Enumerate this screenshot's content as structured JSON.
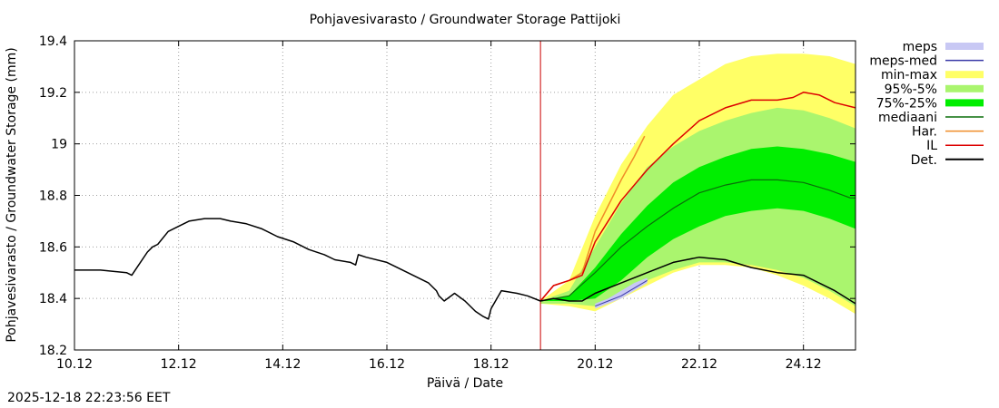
{
  "chart_data": {
    "type": "area",
    "title": "Pohjavesivarasto / Groundwater Storage   Pattijoki",
    "xlabel": "Päivä / Date",
    "ylabel": "Pohjavesivarasto / Groundwater Storage (mm)",
    "xlim": [
      0,
      15
    ],
    "ylim": [
      18.2,
      19.4
    ],
    "grid": true,
    "x_unit": "days since 10.12",
    "x_ticks": [
      {
        "x": 0,
        "label": "10.12"
      },
      {
        "x": 2,
        "label": "12.12"
      },
      {
        "x": 4,
        "label": "14.12"
      },
      {
        "x": 6,
        "label": "16.12"
      },
      {
        "x": 8,
        "label": "18.12"
      },
      {
        "x": 10,
        "label": "20.12"
      },
      {
        "x": 12,
        "label": "22.12"
      },
      {
        "x": 14,
        "label": "24.12"
      }
    ],
    "y_ticks": [
      {
        "y": 18.2,
        "label": "18.2"
      },
      {
        "y": 18.4,
        "label": "18.4"
      },
      {
        "y": 18.6,
        "label": "18.6"
      },
      {
        "y": 18.8,
        "label": "18.8"
      },
      {
        "y": 19.0,
        "label": "19"
      },
      {
        "y": 19.2,
        "label": "19.2"
      },
      {
        "y": 19.4,
        "label": "19.4"
      }
    ],
    "forecast_start_x": 8.95,
    "legend": [
      {
        "key": "meps",
        "label": "meps",
        "kind": "band",
        "color": "#c8c8f4"
      },
      {
        "key": "meps_med",
        "label": "meps-med",
        "kind": "line",
        "color": "#3a3aa8"
      },
      {
        "key": "minmax",
        "label": "min-max",
        "kind": "band",
        "color": "#ffff66"
      },
      {
        "key": "p95_5",
        "label": "95%-5%",
        "kind": "band",
        "color": "#aaf56e"
      },
      {
        "key": "p75_25",
        "label": "75%-25%",
        "kind": "band",
        "color": "#00ee00"
      },
      {
        "key": "mediaani",
        "label": "mediaani",
        "kind": "line",
        "color": "#0a6e0a"
      },
      {
        "key": "har",
        "label": "Har.",
        "kind": "line",
        "color": "#f08c28"
      },
      {
        "key": "il",
        "label": "IL",
        "kind": "line",
        "color": "#dd0000"
      },
      {
        "key": "det",
        "label": "Det.",
        "kind": "line",
        "color": "#000000"
      }
    ],
    "bands": {
      "minmax": {
        "x": [
          8.95,
          9.5,
          10.0,
          10.5,
          11.0,
          11.5,
          12.0,
          12.5,
          13.0,
          13.5,
          14.0,
          14.5,
          15.0
        ],
        "low": [
          18.38,
          18.37,
          18.35,
          18.4,
          18.45,
          18.5,
          18.53,
          18.53,
          18.52,
          18.49,
          18.45,
          18.4,
          18.34
        ],
        "high": [
          18.39,
          18.47,
          18.72,
          18.92,
          19.07,
          19.19,
          19.25,
          19.31,
          19.34,
          19.35,
          19.35,
          19.34,
          19.31
        ]
      },
      "p95_5": {
        "x": [
          8.95,
          9.5,
          10.0,
          10.5,
          11.0,
          11.5,
          12.0,
          12.5,
          13.0,
          13.5,
          14.0,
          14.5,
          15.0
        ],
        "low": [
          18.38,
          18.38,
          18.37,
          18.42,
          18.47,
          18.51,
          18.54,
          18.54,
          18.53,
          18.51,
          18.48,
          18.43,
          18.37
        ],
        "high": [
          18.39,
          18.43,
          18.6,
          18.77,
          18.91,
          18.99,
          19.05,
          19.09,
          19.12,
          19.14,
          19.13,
          19.1,
          19.06
        ]
      },
      "p75_25": {
        "x": [
          8.95,
          9.5,
          10.0,
          10.5,
          11.0,
          11.5,
          12.0,
          12.5,
          13.0,
          13.5,
          14.0,
          14.5,
          15.0
        ],
        "low": [
          18.39,
          18.39,
          18.4,
          18.47,
          18.56,
          18.63,
          18.68,
          18.72,
          18.74,
          18.75,
          18.74,
          18.71,
          18.67
        ],
        "high": [
          18.39,
          18.41,
          18.52,
          18.65,
          18.76,
          18.85,
          18.91,
          18.95,
          18.98,
          18.99,
          18.98,
          18.96,
          18.93
        ]
      },
      "meps": {
        "x": [
          10.0,
          10.25,
          10.5,
          10.75,
          11.0
        ],
        "low": [
          18.36,
          18.38,
          18.4,
          18.43,
          18.46
        ],
        "high": [
          18.38,
          18.4,
          18.43,
          18.46,
          18.48
        ]
      }
    },
    "lines": {
      "meps_med": {
        "x": [
          10.0,
          10.25,
          10.5,
          10.75,
          11.0
        ],
        "y": [
          18.37,
          18.39,
          18.41,
          18.44,
          18.47
        ]
      },
      "mediaani": {
        "x": [
          8.95,
          9.5,
          10.0,
          10.5,
          11.0,
          11.5,
          12.0,
          12.5,
          13.0,
          13.5,
          14.0,
          14.5,
          14.9,
          15.0
        ],
        "y": [
          18.39,
          18.41,
          18.5,
          18.6,
          18.68,
          18.75,
          18.81,
          18.84,
          18.86,
          18.86,
          18.85,
          18.82,
          18.79,
          18.79
        ]
      },
      "har": {
        "x": [
          8.95,
          9.2,
          9.5,
          9.75,
          10.0,
          10.25,
          10.5,
          10.75,
          10.95
        ],
        "y": [
          18.39,
          18.45,
          18.47,
          18.5,
          18.66,
          18.76,
          18.86,
          18.95,
          19.03
        ]
      },
      "il": {
        "x": [
          8.95,
          9.2,
          9.5,
          9.75,
          10.0,
          10.5,
          11.0,
          11.5,
          12.0,
          12.5,
          13.0,
          13.5,
          13.8,
          14.0,
          14.3,
          14.6,
          15.0
        ],
        "y": [
          18.39,
          18.45,
          18.47,
          18.49,
          18.62,
          18.78,
          18.9,
          19.0,
          19.09,
          19.14,
          19.17,
          19.17,
          19.18,
          19.2,
          19.19,
          19.16,
          19.14
        ]
      },
      "det": {
        "x": [
          0,
          0.5,
          1.0,
          1.1,
          1.2,
          1.4,
          1.5,
          1.6,
          1.8,
          2.0,
          2.2,
          2.5,
          2.8,
          3.0,
          3.3,
          3.6,
          3.9,
          4.2,
          4.5,
          4.8,
          5.0,
          5.3,
          5.4,
          5.45,
          5.6,
          6.0,
          6.4,
          6.8,
          6.95,
          7.0,
          7.1,
          7.3,
          7.5,
          7.7,
          7.85,
          7.95,
          8.0,
          8.2,
          8.5,
          8.7,
          8.95,
          9.2,
          9.5,
          9.75,
          10.0,
          10.5,
          11.0,
          11.5,
          11.75,
          12.0,
          12.5,
          13.0,
          13.5,
          14.0,
          14.3,
          14.6,
          15.0
        ],
        "y": [
          18.51,
          18.51,
          18.5,
          18.49,
          18.52,
          18.58,
          18.6,
          18.61,
          18.66,
          18.68,
          18.7,
          18.71,
          18.71,
          18.7,
          18.69,
          18.67,
          18.64,
          18.62,
          18.59,
          18.57,
          18.55,
          18.54,
          18.53,
          18.57,
          18.56,
          18.54,
          18.5,
          18.46,
          18.43,
          18.41,
          18.39,
          18.42,
          18.39,
          18.35,
          18.33,
          18.32,
          18.36,
          18.43,
          18.42,
          18.41,
          18.39,
          18.4,
          18.39,
          18.39,
          18.42,
          18.46,
          18.5,
          18.54,
          18.55,
          18.56,
          18.55,
          18.52,
          18.5,
          18.49,
          18.46,
          18.43,
          18.38
        ]
      }
    }
  },
  "footer": {
    "timestamp": "2025-12-18 22:23:56 EET"
  }
}
